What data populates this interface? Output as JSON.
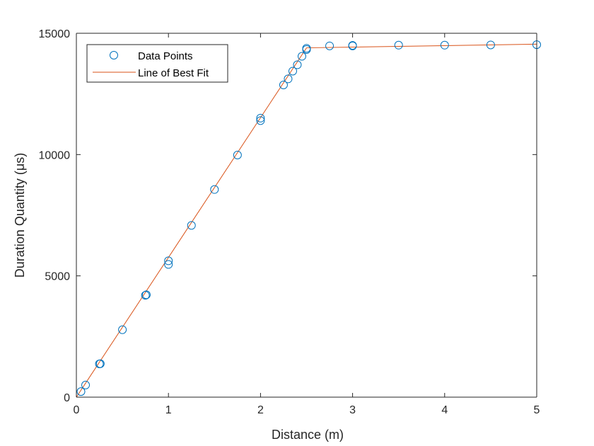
{
  "chart_data": {
    "type": "scatter",
    "title": "",
    "xlabel": "Distance (m)",
    "ylabel": "Duration Quantity (μs)",
    "xlim": [
      0,
      5
    ],
    "ylim": [
      0,
      15000
    ],
    "x_ticks": [
      0,
      1,
      2,
      3,
      4,
      5
    ],
    "y_ticks": [
      0,
      5000,
      10000,
      15000
    ],
    "grid": false,
    "legend_position": "top-left",
    "series": [
      {
        "name": "Data Points",
        "kind": "scatter",
        "marker": "circle",
        "color": "#0072BD",
        "points": [
          [
            0.05,
            230
          ],
          [
            0.1,
            500
          ],
          [
            0.25,
            1370
          ],
          [
            0.26,
            1380
          ],
          [
            0.5,
            2780
          ],
          [
            0.75,
            4200
          ],
          [
            0.76,
            4220
          ],
          [
            1.0,
            5470
          ],
          [
            1.0,
            5620
          ],
          [
            1.25,
            7080
          ],
          [
            1.5,
            8560
          ],
          [
            1.75,
            9980
          ],
          [
            2.0,
            11400
          ],
          [
            2.0,
            11500
          ],
          [
            2.25,
            12870
          ],
          [
            2.3,
            13120
          ],
          [
            2.35,
            13440
          ],
          [
            2.4,
            13700
          ],
          [
            2.45,
            14050
          ],
          [
            2.5,
            14330
          ],
          [
            2.5,
            14380
          ],
          [
            2.75,
            14480
          ],
          [
            3.0,
            14480
          ],
          [
            3.0,
            14500
          ],
          [
            3.5,
            14510
          ],
          [
            4.0,
            14510
          ],
          [
            4.5,
            14520
          ],
          [
            5.0,
            14530
          ]
        ]
      },
      {
        "name": "Line of Best Fit",
        "kind": "line",
        "color": "#D95319",
        "points": [
          [
            0,
            0
          ],
          [
            2.5,
            14400
          ],
          [
            5,
            14550
          ]
        ]
      }
    ]
  }
}
